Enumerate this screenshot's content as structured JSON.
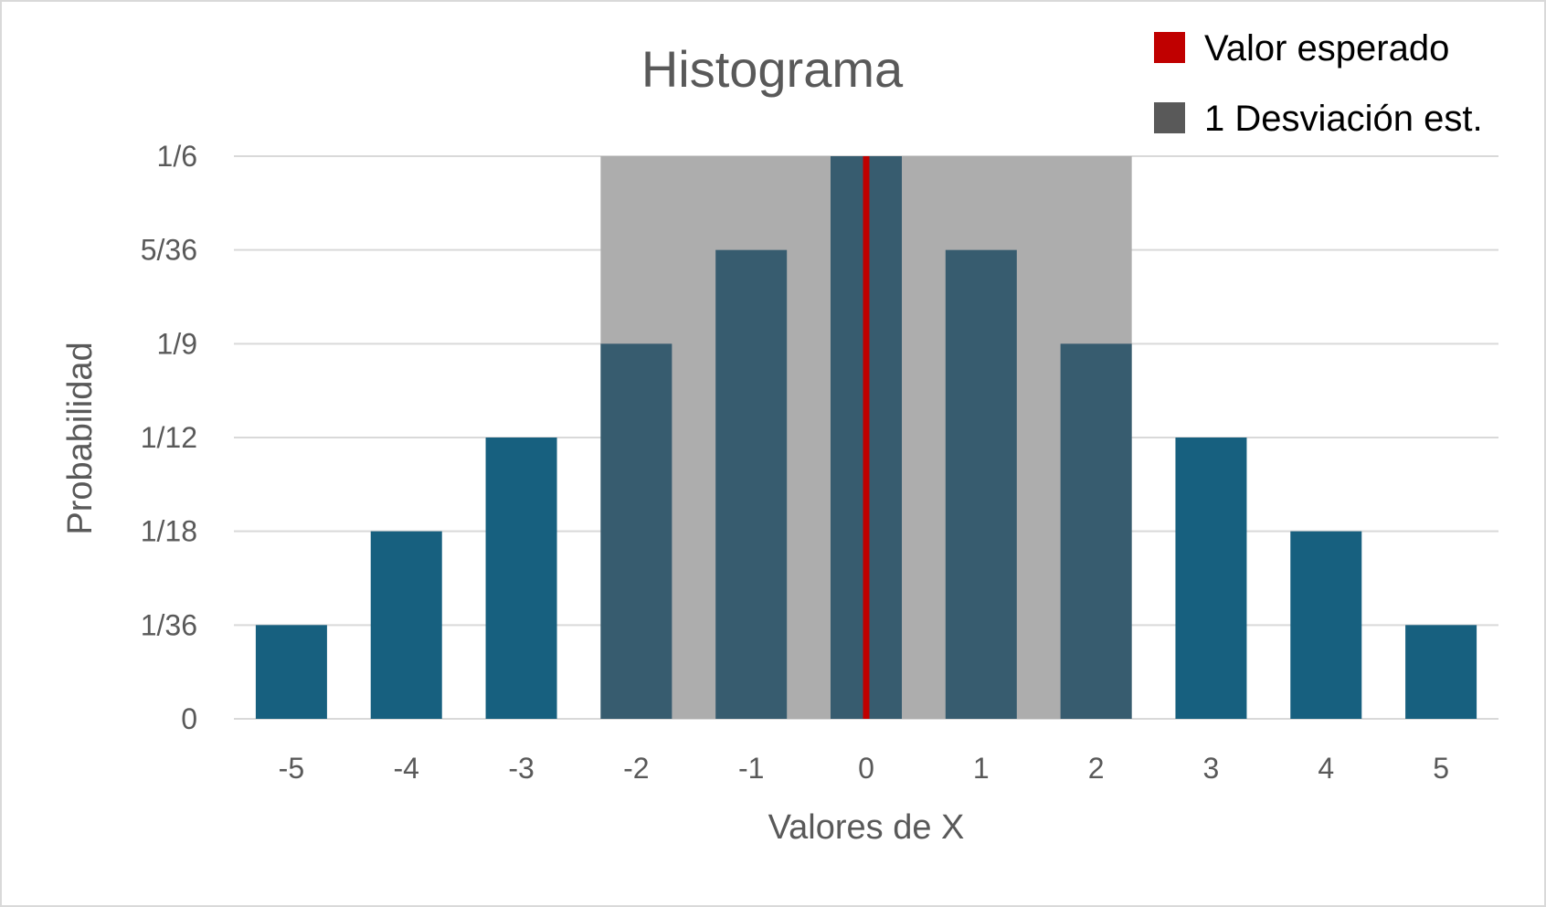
{
  "chart_data": {
    "type": "bar",
    "title": "Histograma",
    "xlabel": "Valores de X",
    "ylabel": "Probabilidad",
    "categories": [
      "-5",
      "-4",
      "-3",
      "-2",
      "-1",
      "0",
      "1",
      "2",
      "3",
      "4",
      "5"
    ],
    "values": [
      0.027778,
      0.055556,
      0.083333,
      0.111111,
      0.138889,
      0.166667,
      0.138889,
      0.111111,
      0.083333,
      0.055556,
      0.027778
    ],
    "y_tick_values": [
      0,
      0.027778,
      0.055556,
      0.083333,
      0.111111,
      0.138889,
      0.166667
    ],
    "y_tick_labels": [
      "0",
      "1/36",
      "1/18",
      "1/12",
      "1/9",
      "5/36",
      "1/6"
    ],
    "ylim": [
      0,
      0.166667
    ],
    "grid": true,
    "legend_position": "top-right",
    "legend": [
      {
        "label": "Valor esperado",
        "color": "#c00000"
      },
      {
        "label": "1 Desviación est.",
        "color": "#595959"
      }
    ],
    "expected_value": 0,
    "std_dev_range": [
      -2,
      2
    ],
    "colors": {
      "bar": "#17607f",
      "bar_in_band": "#375c6f",
      "band": "#adadad",
      "expected_line": "#c00000",
      "grid": "#d9d9d9",
      "text": "#595959"
    }
  }
}
